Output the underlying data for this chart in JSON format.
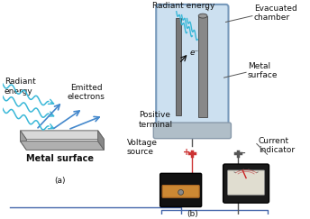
{
  "background_color": "#ffffff",
  "panel_a": {
    "label": "(a)",
    "radiant_energy": "Radiant\nenergy",
    "emitted_electrons": "Emitted\nelectrons",
    "metal_surface": "Metal surface"
  },
  "panel_b": {
    "label": "(b)",
    "radiant_energy": "Radiant energy",
    "evacuated_chamber": "Evacuated\nchamber",
    "metal_surface": "Metal\nsurface",
    "positive_terminal": "Positive\nterminal",
    "voltage_source": "Voltage\nsource",
    "current_indicator": "Current\nindicator",
    "electron": "e⁻",
    "plus": "+",
    "minus": "−"
  },
  "colors": {
    "wave_blue": "#3ab8d8",
    "arrow_blue": "#4488cc",
    "metal_top": "#c8c8c8",
    "metal_front": "#909090",
    "metal_side": "#a0a0a0",
    "metal_dark": "#606060",
    "chamber_fill": "#cce0f0",
    "chamber_border": "#7799bb",
    "chamber_base": "#9aafbe",
    "electrode_gray": "#888888",
    "electrode_dark": "#444444",
    "battery_top": "#b8b0a0",
    "battery_body": "#cc8833",
    "battery_black": "#111111",
    "meter_body": "#222222",
    "meter_face_bg": "#dde8e8",
    "wire_color": "#4466aa",
    "wire_red": "#cc3333",
    "text_black": "#111111",
    "line_gray": "#555555"
  }
}
